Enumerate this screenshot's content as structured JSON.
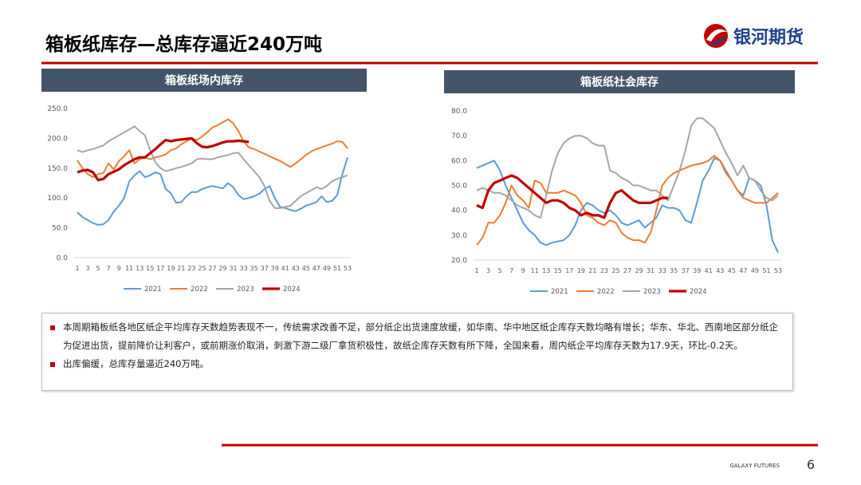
{
  "header": {
    "title": "箱板纸库存—总库存逼近240万吨",
    "logo": "银河期货"
  },
  "chart_data": [
    {
      "type": "line",
      "title": "箱板纸场内库存",
      "categories": [
        1,
        null,
        3,
        null,
        5,
        null,
        7,
        null,
        9,
        null,
        11,
        null,
        13,
        null,
        15,
        null,
        17,
        null,
        19,
        null,
        21,
        null,
        23,
        null,
        25,
        null,
        27,
        null,
        29,
        null,
        31,
        null,
        33,
        null,
        35,
        null,
        37,
        null,
        39,
        null,
        41,
        null,
        43,
        null,
        45,
        null,
        47,
        null,
        49,
        null,
        51,
        null,
        53
      ],
      "ylim": [
        0,
        250
      ],
      "yticks": [
        {
          "value": 0,
          "label": "0.0"
        },
        {
          "value": 50,
          "label": "50.0"
        },
        {
          "value": 100,
          "label": "100.0"
        },
        {
          "value": 150,
          "label": "150.0"
        },
        {
          "value": 200,
          "label": "200.0"
        },
        {
          "value": 250,
          "label": "250.0"
        }
      ],
      "series": [
        {
          "name": "2021",
          "color": "#5b9bd5",
          "values": [
            76,
            68,
            63,
            58,
            55,
            56,
            63,
            77,
            87,
            100,
            128,
            138,
            145,
            135,
            138,
            143,
            140,
            115,
            108,
            92,
            93,
            103,
            110,
            110,
            115,
            118,
            120,
            118,
            116,
            125,
            118,
            105,
            98,
            100,
            103,
            107,
            115,
            120,
            100,
            85,
            83,
            80,
            78,
            82,
            87,
            90,
            93,
            103,
            93,
            95,
            105,
            140,
            168
          ]
        },
        {
          "name": "2022",
          "color": "#ed7d31",
          "values": [
            163,
            150,
            140,
            135,
            140,
            142,
            158,
            148,
            162,
            170,
            180,
            158,
            165,
            168,
            165,
            168,
            170,
            173,
            180,
            183,
            190,
            195,
            200,
            197,
            203,
            210,
            218,
            222,
            227,
            232,
            225,
            212,
            195,
            185,
            182,
            178,
            174,
            170,
            166,
            162,
            157,
            152,
            158,
            165,
            172,
            178,
            182,
            185,
            188,
            191,
            195,
            194,
            183
          ]
        },
        {
          "name": "2023",
          "color": "#a5a5a5",
          "values": [
            180,
            177,
            180,
            182,
            185,
            188,
            195,
            200,
            205,
            210,
            215,
            220,
            212,
            205,
            180,
            160,
            150,
            145,
            147,
            150,
            152,
            155,
            158,
            165,
            166,
            165,
            165,
            168,
            170,
            172,
            175,
            176,
            165,
            155,
            145,
            135,
            120,
            95,
            83,
            83,
            85,
            87,
            95,
            103,
            108,
            113,
            118,
            115,
            120,
            128,
            132,
            135,
            138
          ]
        },
        {
          "name": "2024",
          "color": "#c00000",
          "values": [
            143,
            146,
            147,
            143,
            130,
            132,
            140,
            144,
            148,
            155,
            160,
            165,
            168,
            168,
            175,
            182,
            190,
            197,
            195,
            197,
            198,
            199,
            200,
            192,
            186,
            185,
            187,
            190,
            193,
            195,
            195,
            196,
            195,
            194,
            null,
            null,
            null,
            null,
            null,
            null,
            null,
            null,
            null,
            null,
            null,
            null,
            null,
            null,
            null,
            null,
            null,
            null,
            null
          ]
        }
      ]
    },
    {
      "type": "line",
      "title": "箱板纸社会库存",
      "categories": [
        1,
        null,
        3,
        null,
        5,
        null,
        7,
        null,
        9,
        null,
        11,
        null,
        13,
        null,
        15,
        null,
        17,
        null,
        19,
        null,
        21,
        null,
        23,
        null,
        25,
        null,
        27,
        null,
        29,
        null,
        31,
        null,
        33,
        null,
        35,
        null,
        37,
        null,
        39,
        null,
        41,
        null,
        43,
        null,
        45,
        null,
        47,
        null,
        49,
        null,
        51,
        null,
        53
      ],
      "ylim": [
        20,
        80
      ],
      "yticks": [
        {
          "value": 20,
          "label": "20.0"
        },
        {
          "value": 30,
          "label": "30.0"
        },
        {
          "value": 40,
          "label": "40.0"
        },
        {
          "value": 50,
          "label": "50.0"
        },
        {
          "value": 60,
          "label": "60.0"
        },
        {
          "value": 70,
          "label": "70.0"
        },
        {
          "value": 80,
          "label": "80.0"
        }
      ],
      "series": [
        {
          "name": "2021",
          "color": "#5b9bd5",
          "values": [
            57,
            58,
            59,
            60,
            56,
            50,
            45,
            40,
            35,
            32,
            30,
            27,
            26,
            27,
            27.5,
            28,
            30,
            34,
            40,
            43,
            42,
            40,
            39,
            40,
            38,
            35,
            34,
            35,
            36,
            33,
            35,
            37,
            42,
            41,
            41,
            40,
            36,
            35,
            43,
            52,
            56,
            61,
            60,
            55,
            52,
            48,
            46,
            53,
            52,
            50,
            42,
            28,
            23
          ]
        },
        {
          "name": "2022",
          "color": "#ed7d31",
          "values": [
            26,
            29,
            35,
            35,
            38,
            43,
            50,
            46,
            44,
            41,
            52,
            51,
            47,
            47,
            47,
            48,
            47,
            46,
            43,
            38,
            37,
            35,
            34,
            36,
            35,
            31,
            29,
            28,
            28,
            27,
            31,
            40,
            50,
            53,
            55,
            56,
            57,
            58,
            58.5,
            59,
            60,
            62,
            60,
            56,
            52,
            48,
            45,
            44,
            43,
            43,
            43,
            45,
            47
          ]
        },
        {
          "name": "2023",
          "color": "#a5a5a5",
          "values": [
            48,
            49,
            48,
            47,
            47,
            46,
            44,
            42,
            41,
            40,
            38,
            37,
            46,
            56,
            63,
            67,
            69,
            70,
            70,
            69,
            67,
            66,
            66,
            56,
            55,
            53,
            52,
            50,
            50,
            49,
            48,
            48,
            46,
            44,
            50,
            56,
            64,
            74,
            77,
            77,
            75,
            73,
            68,
            63,
            59,
            54,
            58,
            53,
            52,
            48,
            45,
            44,
            46
          ]
        },
        {
          "name": "2024",
          "color": "#c00000",
          "values": [
            42,
            41,
            48,
            51,
            52,
            53,
            54,
            53,
            51,
            49,
            47,
            45,
            43,
            44,
            44,
            43,
            41,
            40,
            38,
            39,
            38,
            38,
            37,
            43,
            47,
            48,
            46,
            44,
            43,
            43,
            43,
            44,
            45,
            45,
            null,
            null,
            null,
            null,
            null,
            null,
            null,
            null,
            null,
            null,
            null,
            null,
            null,
            null,
            null,
            null,
            null,
            null,
            null
          ]
        }
      ]
    }
  ],
  "bullets": [
    "本周期箱板纸各地区纸企平均库存天数趋势表现不一，传统需求改善不足，部分纸企出货速度放缓，如华南、华中地区纸企库存天数均略有增长；华东、华北、西南地区部分纸企为促进出货，提前降价让利客户，或前期涨价取消，刺激下游二级厂拿货积极性，故纸企库存天数有所下降，全国来看，周内纸企平均库存天数为17.9天，环比-0.2天。",
    "出库偏缓，总库存量逼近240万吨。"
  ],
  "footer": {
    "brand": "GALAXY FUTURES",
    "page": "6"
  }
}
